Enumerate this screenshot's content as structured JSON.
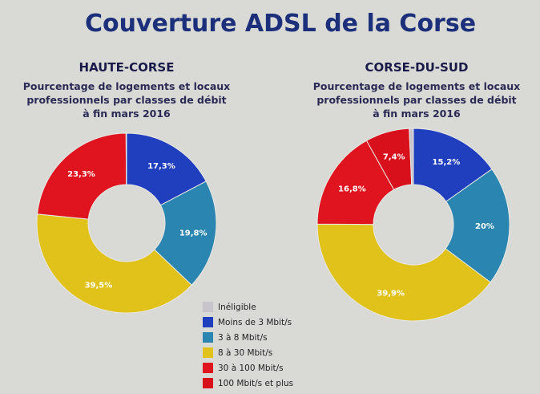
{
  "title": "Couverture ADSL de la Corse",
  "legend": [
    {
      "label": "Inéligible",
      "color": "#c8c4cc"
    },
    {
      "label": "Moins de 3 Mbit/s",
      "color": "#1f3fbf"
    },
    {
      "label": "3 à 8 Mbit/s",
      "color": "#2a86b0"
    },
    {
      "label": "8 à 30 Mbit/s",
      "color": "#e0c21a"
    },
    {
      "label": "30 à 100 Mbit/s",
      "color": "#e0141e"
    },
    {
      "label": "100 Mbit/s et plus",
      "color": "#d8101c"
    }
  ],
  "chart_data": [
    {
      "type": "pie",
      "donut": true,
      "title": "HAUTE-CORSE",
      "subtitle": [
        "Pourcentage de logements et locaux",
        "professionnels par classes de débit",
        "à fin mars 2016"
      ],
      "categories": [
        "Moins de 3 Mbit/s",
        "3 à 8 Mbit/s",
        "8 à 30 Mbit/s",
        "30 à 100 Mbit/s",
        "Inéligible"
      ],
      "values": [
        17.3,
        19.8,
        39.5,
        23.3,
        0.1
      ],
      "labels": [
        "17,3%",
        "19,8%",
        "39,5%",
        "23,3%",
        ""
      ]
    },
    {
      "type": "pie",
      "donut": true,
      "title": "CORSE-DU-SUD",
      "subtitle": [
        "Pourcentage de logements et locaux",
        "professionnels par classes de débit",
        "à fin mars 2016"
      ],
      "categories": [
        "Moins de 3 Mbit/s",
        "3 à 8 Mbit/s",
        "8 à 30 Mbit/s",
        "30 à 100 Mbit/s",
        "100 Mbit/s et plus",
        "Inéligible"
      ],
      "values": [
        15.2,
        20,
        39.9,
        16.8,
        7.4,
        0.7
      ],
      "labels": [
        "15,2%",
        "20%",
        "39,9%",
        "16,8%",
        "7,4%",
        ""
      ]
    }
  ]
}
